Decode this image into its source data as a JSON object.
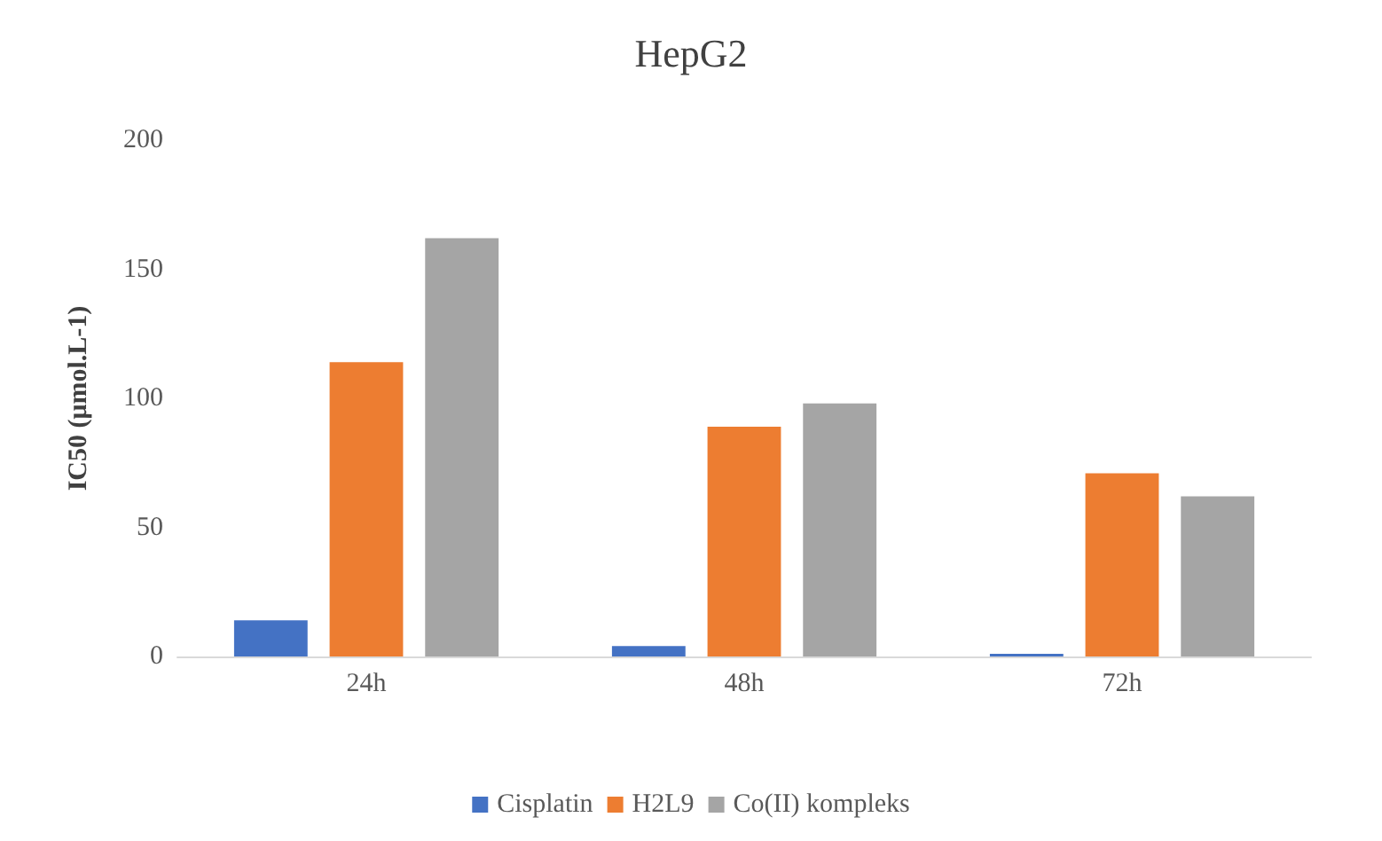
{
  "chart_data": {
    "type": "bar",
    "title": "HepG2",
    "ylabel": "IC50 (μmol.L-1)",
    "categories": [
      "24h",
      "48h",
      "72h"
    ],
    "series": [
      {
        "name": "Cisplatin",
        "color": "#4472c4",
        "values": [
          14,
          4,
          1
        ]
      },
      {
        "name": "H2L9",
        "color": "#ed7d31",
        "values": [
          114,
          89,
          71
        ]
      },
      {
        "name": "Co(II) kompleks",
        "color": "#a5a5a5",
        "values": [
          162,
          98,
          62
        ]
      }
    ],
    "ylim": [
      0,
      200
    ],
    "yticks": [
      0,
      50,
      100,
      150,
      200
    ],
    "grid": false,
    "legend": "bottom"
  }
}
